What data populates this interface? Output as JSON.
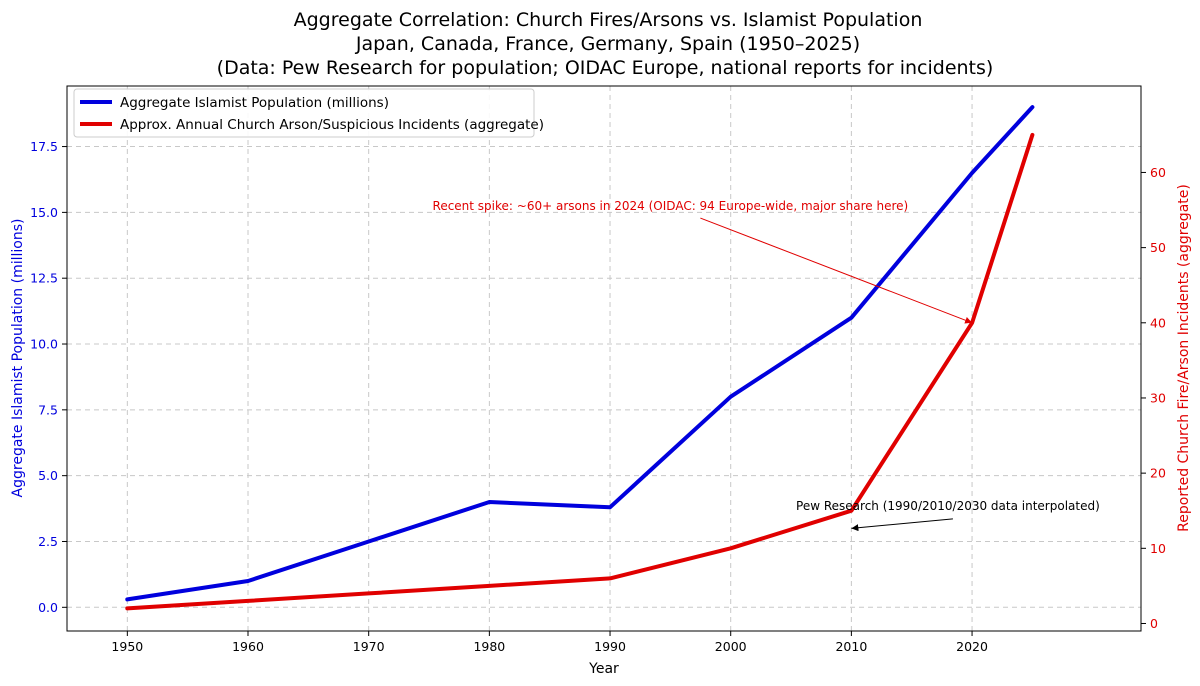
{
  "chart_data": {
    "type": "line",
    "title": [
      "Aggregate Correlation: Church Fires/Arsons vs. Islamist Population",
      "Japan, Canada, France, Germany, Spain (1950–2025)",
      "(Data: Pew Research for population; OIDAC Europe, national reports for incidents)"
    ],
    "xlabel": "Year",
    "ylabel_left": "Aggregate Islamist Population (millions)",
    "ylabel_right": "Reported Church Fire/Arson Incidents (aggregate)",
    "xlim": [
      1945,
      2034
    ],
    "ylim_left": [
      -0.9,
      19.8
    ],
    "ylim_right": [
      -1,
      71.5
    ],
    "x_ticks": [
      1950,
      1960,
      1970,
      1980,
      1990,
      2000,
      2010,
      2020
    ],
    "y_left_ticks": [
      0.0,
      2.5,
      5.0,
      7.5,
      10.0,
      12.5,
      15.0,
      17.5
    ],
    "y_left_tick_labels": [
      "0.0",
      "2.5",
      "5.0",
      "7.5",
      "10.0",
      "12.5",
      "15.0",
      "17.5"
    ],
    "y_right_ticks": [
      0,
      10,
      20,
      30,
      40,
      50,
      60
    ],
    "grid": true,
    "legend_position": "top-left",
    "series": [
      {
        "name": "Aggregate Islamist Population (millions)",
        "axis": "left",
        "color": "#0000dd",
        "x": [
          1950,
          1960,
          1970,
          1980,
          1990,
          2000,
          2010,
          2020,
          2025
        ],
        "values": [
          0.3,
          1.0,
          2.5,
          4.0,
          3.8,
          8.0,
          11.0,
          16.5,
          19.0
        ]
      },
      {
        "name": "Approx. Annual Church Arson/Suspicious Incidents (aggregate)",
        "axis": "right",
        "color": "#e00000",
        "x": [
          1950,
          1960,
          1970,
          1980,
          1990,
          2000,
          2010,
          2020,
          2025
        ],
        "values": [
          2,
          3,
          4,
          5,
          6,
          10,
          15,
          40,
          65
        ]
      }
    ],
    "annotations": [
      {
        "text": "Recent spike: ~60+ arsons in 2024 (OIDAC: 94 Europe-wide, major share here)",
        "color": "#e00000",
        "text_x": 1995,
        "text_y_right": 55,
        "arrow_to_x": 2020,
        "arrow_to_y_right": 40
      },
      {
        "text": "Pew Research (1990/2010/2030 data interpolated)",
        "color": "#000000",
        "text_x": 2018,
        "text_y_left": 3.7,
        "arrow_to_x": 2010,
        "arrow_to_y_left": 3.0
      }
    ]
  }
}
